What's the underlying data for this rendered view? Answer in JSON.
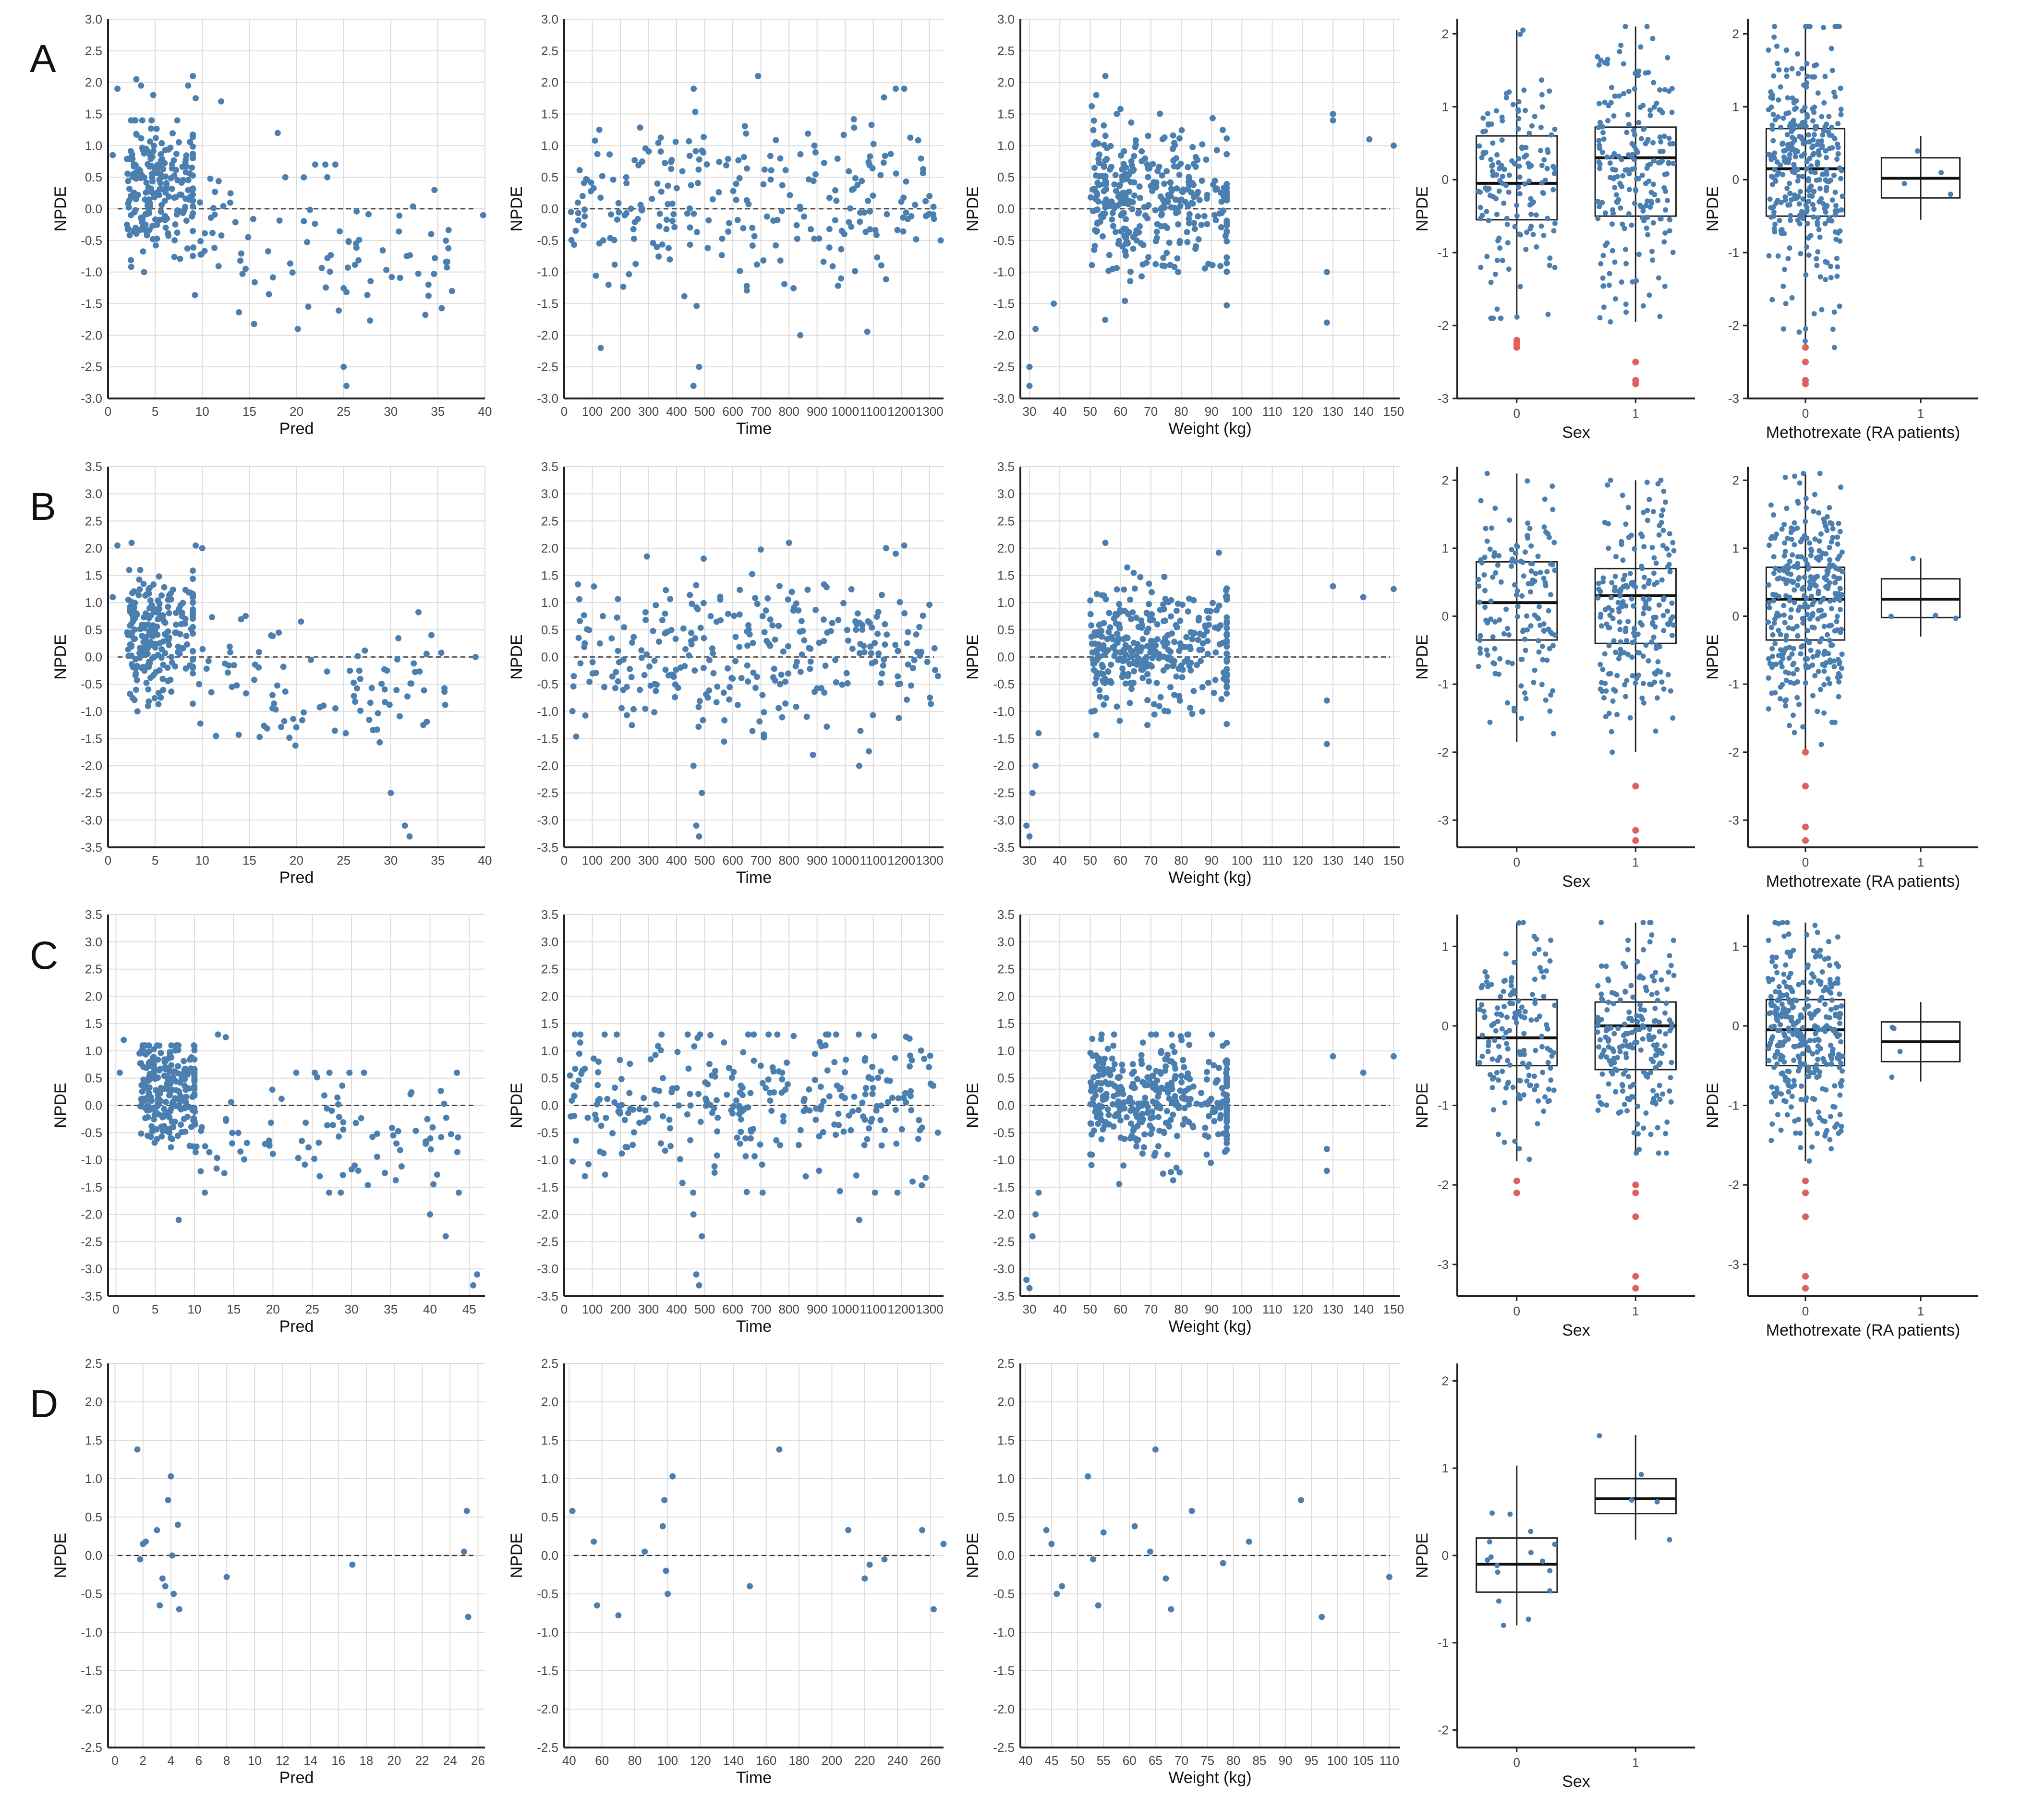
{
  "figure": {
    "rows": [
      {
        "label": "A"
      },
      {
        "label": "B"
      },
      {
        "label": "C"
      },
      {
        "label": "D"
      }
    ]
  },
  "colors": {
    "points": "#4a7fb0",
    "outliers": "#e06060",
    "grid": "#dcdcdc",
    "axis": "#222222"
  },
  "chart_data": [
    {
      "id": "A-pred",
      "row": "A",
      "type": "scatter",
      "xlabel": "Pred",
      "ylabel": "NPDE",
      "xlim": [
        0,
        40
      ],
      "xticks": [
        0,
        5,
        10,
        15,
        20,
        25,
        30,
        35,
        40
      ],
      "ylim": [
        -3,
        3
      ],
      "yticks": [
        -3.0,
        -2.5,
        -2.0,
        -1.5,
        -1.0,
        -0.5,
        0.0,
        0.5,
        1.0,
        1.5,
        2.0,
        2.5,
        3.0
      ],
      "n_points": 330,
      "cluster": {
        "x": [
          2,
          9
        ],
        "y": [
          -1.0,
          1.4
        ]
      },
      "tail": {
        "x": [
          9,
          37
        ],
        "y": [
          -1.9,
          0.7
        ]
      },
      "x": [
        0.5,
        1.0,
        3.0,
        3.5,
        4.8,
        8.5,
        9.0,
        9.3,
        12.0,
        18.0,
        25.0,
        25.3,
        34.0,
        36.5,
        39.8
      ],
      "y": [
        0.85,
        1.9,
        2.05,
        1.95,
        1.8,
        1.95,
        2.1,
        1.75,
        1.7,
        1.2,
        -2.5,
        -2.8,
        -1.2,
        -1.3,
        -0.1
      ]
    },
    {
      "id": "A-time",
      "row": "A",
      "type": "scatter",
      "xlabel": "Time",
      "ylabel": "NPDE",
      "xlim": [
        0,
        1350
      ],
      "xticks": [
        0,
        100,
        200,
        300,
        400,
        500,
        600,
        700,
        800,
        900,
        1000,
        1100,
        1200,
        1300
      ],
      "ylim": [
        -3,
        3
      ],
      "yticks": [
        -3.0,
        -2.5,
        -2.0,
        -1.5,
        -1.0,
        -0.5,
        0.0,
        0.5,
        1.0,
        1.5,
        2.0,
        2.5,
        3.0
      ],
      "n_points": 260,
      "spread": {
        "x": [
          20,
          1320
        ],
        "y": [
          -2.0,
          1.9
        ]
      },
      "x": [
        130,
        460,
        480,
        690,
        1180,
        1210,
        1340
      ],
      "y": [
        -2.2,
        -2.8,
        -2.5,
        2.1,
        1.9,
        1.9,
        -0.5
      ]
    },
    {
      "id": "A-weight",
      "row": "A",
      "type": "scatter",
      "xlabel": "Weight (kg)",
      "ylabel": "NPDE",
      "xlim": [
        27,
        152
      ],
      "xticks": [
        30,
        40,
        50,
        60,
        70,
        80,
        90,
        100,
        110,
        120,
        130,
        140,
        150
      ],
      "ylim": [
        -3,
        3
      ],
      "yticks": [
        -3.0,
        -2.5,
        -2.0,
        -1.5,
        -1.0,
        -0.5,
        0.0,
        0.5,
        1.0,
        1.5,
        2.0,
        2.5,
        3.0
      ],
      "n_points": 360,
      "cluster": {
        "x": [
          50,
          95
        ],
        "y": [
          -1.8,
          1.9
        ]
      },
      "x": [
        30,
        30,
        32,
        38,
        52,
        55,
        128,
        128,
        130,
        130,
        142,
        150
      ],
      "y": [
        -2.5,
        -2.8,
        -1.9,
        -1.5,
        1.8,
        2.1,
        -1.8,
        -1.0,
        1.5,
        1.4,
        1.1,
        1.0
      ]
    },
    {
      "id": "A-sex",
      "row": "A",
      "type": "box",
      "xlabel": "Sex",
      "ylabel": "NPDE",
      "categories": [
        "0",
        "1"
      ],
      "ylim": [
        -3,
        2.2
      ],
      "yticks": [
        -3,
        -2,
        -1,
        0,
        1,
        2
      ],
      "boxes": [
        {
          "q1": -0.55,
          "median": -0.05,
          "q3": 0.6,
          "low": -1.9,
          "high": 2.05,
          "outliers": [
            -2.2,
            -2.25,
            -2.3
          ],
          "n": 150
        },
        {
          "q1": -0.5,
          "median": 0.3,
          "q3": 0.72,
          "low": -1.95,
          "high": 2.1,
          "outliers": [
            -2.5,
            -2.75,
            -2.8
          ],
          "n": 210
        }
      ]
    },
    {
      "id": "A-mtx",
      "row": "A",
      "type": "box",
      "xlabel": "Methotrexate (RA patients)",
      "ylabel": "NPDE",
      "categories": [
        "0",
        "1"
      ],
      "ylim": [
        -3,
        2.2
      ],
      "yticks": [
        -3,
        -2,
        -1,
        0,
        1,
        2
      ],
      "boxes": [
        {
          "q1": -0.5,
          "median": 0.15,
          "q3": 0.7,
          "low": -2.3,
          "high": 2.1,
          "outliers": [
            -2.3,
            -2.5,
            -2.75,
            -2.8
          ],
          "n": 340
        },
        {
          "q1": -0.25,
          "median": 0.02,
          "q3": 0.3,
          "low": -0.55,
          "high": 0.6,
          "outliers": [],
          "n": 4
        }
      ]
    },
    {
      "id": "B-pred",
      "row": "B",
      "type": "scatter",
      "xlabel": "Pred",
      "ylabel": "NPDE",
      "xlim": [
        0,
        40
      ],
      "xticks": [
        0,
        5,
        10,
        15,
        20,
        25,
        30,
        35,
        40
      ],
      "ylim": [
        -3.5,
        3.5
      ],
      "yticks": [
        -3.5,
        -3.0,
        -2.5,
        -2.0,
        -1.5,
        -1.0,
        -0.5,
        0.0,
        0.5,
        1.0,
        1.5,
        2.0,
        2.5,
        3.0,
        3.5
      ],
      "n_points": 330,
      "cluster": {
        "x": [
          2,
          9
        ],
        "y": [
          -1.0,
          1.6
        ]
      },
      "tail": {
        "x": [
          9,
          36
        ],
        "y": [
          -2.0,
          1.0
        ]
      },
      "x": [
        0.5,
        1.0,
        2.5,
        9.3,
        10.0,
        30.0,
        31.5,
        32.0,
        39.0
      ],
      "y": [
        1.1,
        2.05,
        2.1,
        2.05,
        2.0,
        -2.5,
        -3.1,
        -3.3,
        0.0
      ]
    },
    {
      "id": "B-time",
      "row": "B",
      "type": "scatter",
      "xlabel": "Time",
      "ylabel": "NPDE",
      "xlim": [
        0,
        1350
      ],
      "xticks": [
        0,
        100,
        200,
        300,
        400,
        500,
        600,
        700,
        800,
        900,
        1000,
        1100,
        1200,
        1300
      ],
      "ylim": [
        -3.5,
        3.5
      ],
      "yticks": [
        -3.5,
        -3.0,
        -2.5,
        -2.0,
        -1.5,
        -1.0,
        -0.5,
        0.0,
        0.5,
        1.0,
        1.5,
        2.0,
        2.5,
        3.0,
        3.5
      ],
      "n_points": 300,
      "spread": {
        "x": [
          20,
          1320
        ],
        "y": [
          -1.8,
          2.0
        ]
      },
      "x": [
        460,
        470,
        480,
        490,
        800,
        1050,
        1180,
        1210,
        1330
      ],
      "y": [
        -2.0,
        -3.1,
        -3.3,
        -2.5,
        2.1,
        -2.0,
        1.9,
        2.05,
        -0.35
      ]
    },
    {
      "id": "B-weight",
      "row": "B",
      "type": "scatter",
      "xlabel": "Weight (kg)",
      "ylabel": "NPDE",
      "xlim": [
        27,
        152
      ],
      "xticks": [
        30,
        40,
        50,
        60,
        70,
        80,
        90,
        100,
        110,
        120,
        130,
        140,
        150
      ],
      "ylim": [
        -3.5,
        3.5
      ],
      "yticks": [
        -3.5,
        -3.0,
        -2.5,
        -2.0,
        -1.5,
        -1.0,
        -0.5,
        0.0,
        0.5,
        1.0,
        1.5,
        2.0,
        2.5,
        3.0,
        3.5
      ],
      "n_points": 360,
      "cluster": {
        "x": [
          50,
          95
        ],
        "y": [
          -1.8,
          2.0
        ]
      },
      "x": [
        29,
        30,
        31,
        32,
        33,
        55,
        128,
        128,
        130,
        140,
        150
      ],
      "y": [
        -3.1,
        -3.3,
        -2.5,
        -2.0,
        -1.4,
        2.1,
        -1.6,
        -0.8,
        1.3,
        1.1,
        1.25
      ]
    },
    {
      "id": "B-sex",
      "row": "B",
      "type": "box",
      "xlabel": "Sex",
      "ylabel": "NPDE",
      "categories": [
        "0",
        "1"
      ],
      "ylim": [
        -3.4,
        2.2
      ],
      "yticks": [
        -3,
        -2,
        -1,
        0,
        1,
        2
      ],
      "boxes": [
        {
          "q1": -0.35,
          "median": 0.2,
          "q3": 0.8,
          "low": -1.85,
          "high": 2.1,
          "outliers": [],
          "n": 150
        },
        {
          "q1": -0.4,
          "median": 0.3,
          "q3": 0.7,
          "low": -2.0,
          "high": 2.0,
          "outliers": [
            -2.5,
            -3.15,
            -3.3
          ],
          "n": 210
        }
      ]
    },
    {
      "id": "B-mtx",
      "row": "B",
      "type": "box",
      "xlabel": "Methotrexate (RA patients)",
      "ylabel": "NPDE",
      "categories": [
        "0",
        "1"
      ],
      "ylim": [
        -3.4,
        2.2
      ],
      "yticks": [
        -3,
        -2,
        -1,
        0,
        1,
        2
      ],
      "boxes": [
        {
          "q1": -0.35,
          "median": 0.25,
          "q3": 0.72,
          "low": -2.0,
          "high": 2.1,
          "outliers": [
            -2.0,
            -2.5,
            -3.1,
            -3.3
          ],
          "n": 340
        },
        {
          "q1": -0.02,
          "median": 0.25,
          "q3": 0.55,
          "low": -0.3,
          "high": 0.85,
          "outliers": [],
          "n": 4
        }
      ]
    },
    {
      "id": "C-pred",
      "row": "C",
      "type": "scatter",
      "xlabel": "Pred",
      "ylabel": "NPDE",
      "xlim": [
        -1,
        47
      ],
      "xticks": [
        0,
        5,
        10,
        15,
        20,
        25,
        30,
        35,
        40,
        45
      ],
      "ylim": [
        -3.5,
        3.5
      ],
      "yticks": [
        -3.5,
        -3.0,
        -2.5,
        -2.0,
        -1.5,
        -1.0,
        -0.5,
        0.0,
        0.5,
        1.0,
        1.5,
        2.0,
        2.5,
        3.0,
        3.5
      ],
      "n_points": 330,
      "cluster": {
        "x": [
          3,
          10
        ],
        "y": [
          -1.0,
          1.1
        ]
      },
      "tail": {
        "x": [
          10,
          44
        ],
        "y": [
          -1.6,
          0.6
        ]
      },
      "x": [
        0.5,
        1.0,
        8.0,
        13.0,
        14.0,
        40.0,
        42.0,
        45.5,
        46.0
      ],
      "y": [
        0.6,
        1.2,
        -2.1,
        1.3,
        1.25,
        -2.0,
        -2.4,
        -3.3,
        -3.1
      ]
    },
    {
      "id": "C-time",
      "row": "C",
      "type": "scatter",
      "xlabel": "Time",
      "ylabel": "NPDE",
      "xlim": [
        0,
        1350
      ],
      "xticks": [
        0,
        100,
        200,
        300,
        400,
        500,
        600,
        700,
        800,
        900,
        1000,
        1100,
        1200,
        1300
      ],
      "ylim": [
        -3.5,
        3.5
      ],
      "yticks": [
        -3.5,
        -3.0,
        -2.5,
        -2.0,
        -1.5,
        -1.0,
        -0.5,
        0.0,
        0.5,
        1.0,
        1.5,
        2.0,
        2.5,
        3.0,
        3.5
      ],
      "n_points": 300,
      "spread": {
        "x": [
          20,
          1320
        ],
        "y": [
          -1.6,
          1.3
        ]
      },
      "x": [
        460,
        470,
        480,
        490,
        1050,
        1330
      ],
      "y": [
        -2.0,
        -3.1,
        -3.3,
        -2.4,
        -2.1,
        -0.5
      ]
    },
    {
      "id": "C-weight",
      "row": "C",
      "type": "scatter",
      "xlabel": "Weight (kg)",
      "ylabel": "NPDE",
      "xlim": [
        27,
        152
      ],
      "xticks": [
        30,
        40,
        50,
        60,
        70,
        80,
        90,
        100,
        110,
        120,
        130,
        140,
        150
      ],
      "ylim": [
        -3.5,
        3.5
      ],
      "yticks": [
        -3.5,
        -3.0,
        -2.5,
        -2.0,
        -1.5,
        -1.0,
        -0.5,
        0.0,
        0.5,
        1.0,
        1.5,
        2.0,
        2.5,
        3.0,
        3.5
      ],
      "n_points": 360,
      "cluster": {
        "x": [
          50,
          95
        ],
        "y": [
          -1.8,
          1.3
        ]
      },
      "x": [
        29,
        30,
        31,
        32,
        33,
        128,
        128,
        130,
        140,
        150
      ],
      "y": [
        -3.2,
        -3.35,
        -2.4,
        -2.0,
        -1.6,
        -1.2,
        -0.8,
        0.9,
        0.6,
        0.9
      ]
    },
    {
      "id": "C-sex",
      "row": "C",
      "type": "box",
      "xlabel": "Sex",
      "ylabel": "NPDE",
      "categories": [
        "0",
        "1"
      ],
      "ylim": [
        -3.4,
        1.4
      ],
      "yticks": [
        -3,
        -2,
        -1,
        0,
        1
      ],
      "boxes": [
        {
          "q1": -0.5,
          "median": -0.15,
          "q3": 0.33,
          "low": -1.7,
          "high": 1.3,
          "outliers": [
            -1.95,
            -2.1
          ],
          "n": 150
        },
        {
          "q1": -0.55,
          "median": 0.0,
          "q3": 0.3,
          "low": -1.6,
          "high": 1.3,
          "outliers": [
            -2.0,
            -2.1,
            -2.4,
            -3.15,
            -3.3
          ],
          "n": 210
        }
      ]
    },
    {
      "id": "C-mtx",
      "row": "C",
      "type": "box",
      "xlabel": "Methotrexate (RA patients)",
      "ylabel": "NPDE",
      "categories": [
        "0",
        "1"
      ],
      "ylim": [
        -3.4,
        1.4
      ],
      "yticks": [
        -3,
        -2,
        -1,
        0,
        1
      ],
      "boxes": [
        {
          "q1": -0.5,
          "median": -0.05,
          "q3": 0.33,
          "low": -1.7,
          "high": 1.3,
          "outliers": [
            -1.95,
            -2.1,
            -2.4,
            -3.15,
            -3.3
          ],
          "n": 340
        },
        {
          "q1": -0.45,
          "median": -0.2,
          "q3": 0.05,
          "low": -0.7,
          "high": 0.3,
          "outliers": [],
          "n": 4
        }
      ]
    },
    {
      "id": "D-pred",
      "row": "D",
      "type": "scatter",
      "xlabel": "Pred",
      "ylabel": "NPDE",
      "xlim": [
        -0.5,
        26.5
      ],
      "xticks": [
        0,
        2,
        4,
        6,
        8,
        10,
        12,
        14,
        16,
        18,
        20,
        22,
        24,
        26
      ],
      "ylim": [
        -2.5,
        2.5
      ],
      "yticks": [
        -2.5,
        -2.0,
        -1.5,
        -1.0,
        -0.5,
        0.0,
        0.5,
        1.0,
        1.5,
        2.0,
        2.5
      ],
      "n_points": 20,
      "x": [
        1.6,
        1.8,
        2.0,
        2.2,
        3.0,
        3.2,
        3.4,
        3.6,
        3.8,
        4.0,
        4.1,
        4.2,
        4.5,
        4.6,
        8.0,
        17.0,
        25.0,
        25.2,
        25.3
      ],
      "y": [
        1.38,
        -0.05,
        0.15,
        0.18,
        0.33,
        -0.65,
        -0.3,
        -0.4,
        0.72,
        1.03,
        0.0,
        -0.5,
        0.4,
        -0.7,
        -0.28,
        -0.12,
        0.05,
        0.58,
        -0.8
      ]
    },
    {
      "id": "D-time",
      "row": "D",
      "type": "scatter",
      "xlabel": "Time",
      "ylabel": "NPDE",
      "xlim": [
        37,
        268
      ],
      "xticks": [
        40,
        60,
        80,
        100,
        120,
        140,
        160,
        180,
        200,
        220,
        240,
        260
      ],
      "ylim": [
        -2.5,
        2.5
      ],
      "yticks": [
        -2.5,
        -2.0,
        -1.5,
        -1.0,
        -0.5,
        0.0,
        0.5,
        1.0,
        1.5,
        2.0,
        2.5
      ],
      "n_points": 20,
      "x": [
        42,
        55,
        57,
        70,
        86,
        97,
        98,
        99,
        100,
        103,
        150,
        168,
        210,
        220,
        223,
        232,
        255,
        262,
        268
      ],
      "y": [
        0.58,
        0.18,
        -0.65,
        -0.78,
        0.05,
        0.38,
        0.72,
        -0.2,
        -0.5,
        1.03,
        -0.4,
        1.38,
        0.33,
        -0.3,
        -0.12,
        -0.05,
        0.33,
        -0.7,
        0.15
      ]
    },
    {
      "id": "D-weight",
      "row": "D",
      "type": "scatter",
      "xlabel": "Weight (kg)",
      "ylabel": "NPDE",
      "xlim": [
        39,
        112
      ],
      "xticks": [
        40,
        45,
        50,
        55,
        60,
        65,
        70,
        75,
        80,
        85,
        90,
        95,
        100,
        105,
        110
      ],
      "ylim": [
        -2.5,
        2.5
      ],
      "yticks": [
        -2.5,
        -2.0,
        -1.5,
        -1.0,
        -0.5,
        0.0,
        0.5,
        1.0,
        1.5,
        2.0,
        2.5
      ],
      "n_points": 20,
      "x": [
        44,
        45,
        46,
        47,
        52,
        53,
        54,
        55,
        61,
        64,
        65,
        67,
        68,
        72,
        78,
        83,
        93,
        97,
        110
      ],
      "y": [
        0.33,
        0.15,
        -0.5,
        -0.4,
        1.03,
        -0.05,
        -0.65,
        0.3,
        0.38,
        0.05,
        1.38,
        -0.3,
        -0.7,
        0.58,
        -0.1,
        0.18,
        0.72,
        -0.8,
        -0.28
      ]
    },
    {
      "id": "D-sex",
      "row": "D",
      "type": "box",
      "xlabel": "Sex",
      "ylabel": "NPDE",
      "categories": [
        "0",
        "1"
      ],
      "ylim": [
        -2.2,
        2.2
      ],
      "yticks": [
        -2,
        -1,
        0,
        1,
        2
      ],
      "boxes": [
        {
          "q1": -0.42,
          "median": -0.1,
          "q3": 0.2,
          "low": -0.8,
          "high": 1.03,
          "outliers": [],
          "n": 16
        },
        {
          "q1": 0.48,
          "median": 0.65,
          "q3": 0.88,
          "low": 0.18,
          "high": 1.38,
          "outliers": [],
          "n": 5
        }
      ]
    }
  ]
}
